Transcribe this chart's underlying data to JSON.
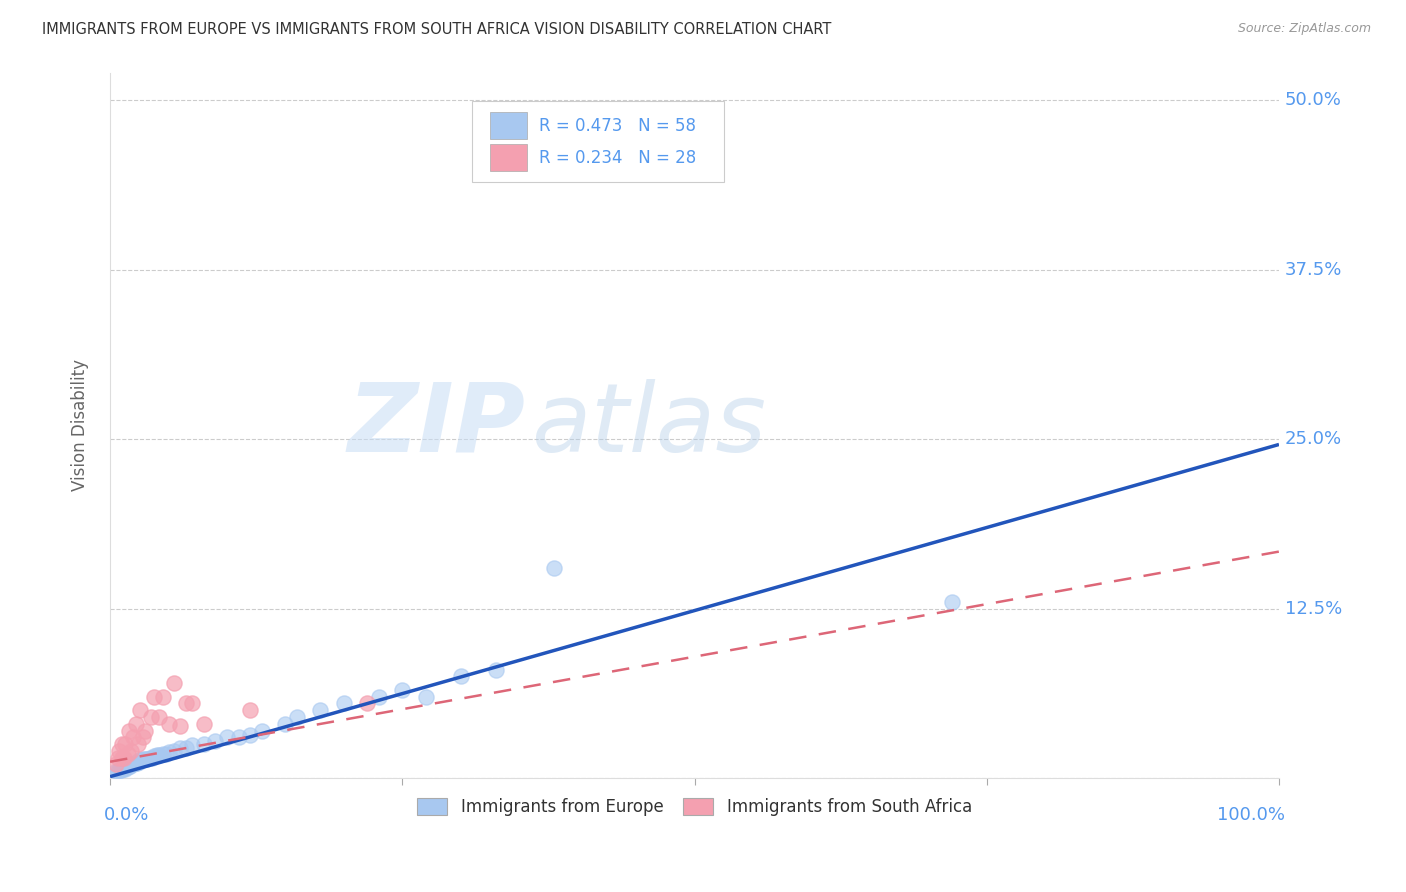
{
  "title": "IMMIGRANTS FROM EUROPE VS IMMIGRANTS FROM SOUTH AFRICA VISION DISABILITY CORRELATION CHART",
  "source": "Source: ZipAtlas.com",
  "ylabel": "Vision Disability",
  "yticks": [
    0.0,
    0.125,
    0.25,
    0.375,
    0.5
  ],
  "ytick_labels": [
    "",
    "12.5%",
    "25.0%",
    "37.5%",
    "50.0%"
  ],
  "xticks": [
    0.0,
    0.25,
    0.5,
    0.75,
    1.0
  ],
  "xlim": [
    0.0,
    1.0
  ],
  "ylim": [
    0.0,
    0.52
  ],
  "legend_line1_r": "R = 0.473",
  "legend_line1_n": "N = 58",
  "legend_line2_r": "R = 0.234",
  "legend_line2_n": "N = 28",
  "legend_label1": "Immigrants from Europe",
  "legend_label2": "Immigrants from South Africa",
  "blue_color": "#A8C8F0",
  "pink_color": "#F4A0B0",
  "blue_line_color": "#2255BB",
  "pink_line_color": "#DD6677",
  "watermark_zip": "ZIP",
  "watermark_atlas": "atlas",
  "title_color": "#333333",
  "axis_label_color": "#5599EE",
  "blue_line_slope": 0.245,
  "blue_line_intercept": 0.001,
  "pink_line_slope": 0.155,
  "pink_line_intercept": 0.012,
  "blue_scatter_x": [
    0.005,
    0.007,
    0.008,
    0.009,
    0.01,
    0.01,
    0.011,
    0.012,
    0.013,
    0.013,
    0.014,
    0.015,
    0.015,
    0.016,
    0.017,
    0.018,
    0.019,
    0.02,
    0.021,
    0.022,
    0.023,
    0.024,
    0.025,
    0.025,
    0.026,
    0.027,
    0.028,
    0.03,
    0.032,
    0.034,
    0.036,
    0.038,
    0.04,
    0.042,
    0.045,
    0.048,
    0.05,
    0.055,
    0.06,
    0.065,
    0.07,
    0.08,
    0.09,
    0.1,
    0.11,
    0.12,
    0.13,
    0.15,
    0.16,
    0.18,
    0.2,
    0.23,
    0.25,
    0.27,
    0.3,
    0.33,
    0.38,
    0.72
  ],
  "blue_scatter_y": [
    0.005,
    0.005,
    0.006,
    0.006,
    0.007,
    0.008,
    0.007,
    0.008,
    0.007,
    0.009,
    0.008,
    0.008,
    0.009,
    0.009,
    0.009,
    0.01,
    0.01,
    0.01,
    0.011,
    0.011,
    0.011,
    0.012,
    0.012,
    0.013,
    0.013,
    0.013,
    0.014,
    0.014,
    0.014,
    0.015,
    0.015,
    0.016,
    0.017,
    0.017,
    0.018,
    0.018,
    0.019,
    0.02,
    0.022,
    0.022,
    0.024,
    0.025,
    0.027,
    0.03,
    0.03,
    0.032,
    0.035,
    0.04,
    0.045,
    0.05,
    0.055,
    0.06,
    0.065,
    0.06,
    0.075,
    0.08,
    0.155,
    0.13
  ],
  "pink_scatter_x": [
    0.005,
    0.007,
    0.008,
    0.01,
    0.01,
    0.012,
    0.013,
    0.015,
    0.016,
    0.018,
    0.02,
    0.022,
    0.024,
    0.026,
    0.028,
    0.03,
    0.035,
    0.038,
    0.042,
    0.045,
    0.05,
    0.055,
    0.06,
    0.065,
    0.07,
    0.08,
    0.12,
    0.22
  ],
  "pink_scatter_y": [
    0.01,
    0.015,
    0.02,
    0.015,
    0.025,
    0.015,
    0.025,
    0.018,
    0.035,
    0.02,
    0.03,
    0.04,
    0.025,
    0.05,
    0.03,
    0.035,
    0.045,
    0.06,
    0.045,
    0.06,
    0.04,
    0.07,
    0.038,
    0.055,
    0.055,
    0.04,
    0.05,
    0.055
  ]
}
